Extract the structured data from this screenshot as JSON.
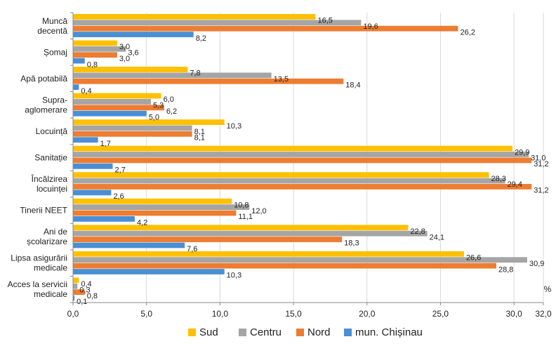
{
  "chart_data": {
    "type": "bar",
    "orientation": "horizontal",
    "categories": [
      [
        "Muncă",
        "decentă"
      ],
      [
        "Șomaj"
      ],
      [
        "Apă potabilă"
      ],
      [
        "Supra-",
        "aglomerare"
      ],
      [
        "Locuință"
      ],
      [
        "Sanitație"
      ],
      [
        "Încălzirea",
        "locuinței"
      ],
      [
        "Tinerii NEET"
      ],
      [
        "Ani de",
        "școlarizare"
      ],
      [
        "Lipsa asigurării",
        "medicale"
      ],
      [
        "Acces la servicii",
        "medicale"
      ]
    ],
    "series": [
      {
        "name": "Sud",
        "color": "#FFC000",
        "values": [
          16.5,
          3.0,
          7.8,
          6.0,
          10.3,
          29.9,
          28.3,
          10.8,
          22.8,
          26.6,
          0.4
        ]
      },
      {
        "name": "Centru",
        "color": "#A5A5A5",
        "values": [
          19.6,
          3.6,
          13.5,
          5.3,
          8.1,
          31.0,
          29.4,
          12.0,
          24.1,
          30.9,
          0.3
        ]
      },
      {
        "name": "Nord",
        "color": "#ED7D31",
        "values": [
          26.2,
          3.0,
          18.4,
          6.2,
          8.1,
          31.2,
          31.2,
          11.1,
          18.3,
          28.8,
          0.8
        ]
      },
      {
        "name": "mun. Chișinau",
        "color": "#4A8FD4",
        "values": [
          8.2,
          0.8,
          0.4,
          5.0,
          1.7,
          2.7,
          2.6,
          4.2,
          7.6,
          10.3,
          0.1
        ]
      }
    ],
    "xlim": [
      0,
      32
    ],
    "xticks": [
      0,
      5,
      10,
      15,
      20,
      25,
      30,
      32
    ],
    "tick_labels": [
      "0,0",
      "5,0",
      "10,0",
      "15,0",
      "20,0",
      "25,0",
      "30,0",
      "32,0"
    ],
    "unit_label": "%",
    "legend_position": "bottom",
    "grid": true,
    "decimal_separator": ","
  }
}
